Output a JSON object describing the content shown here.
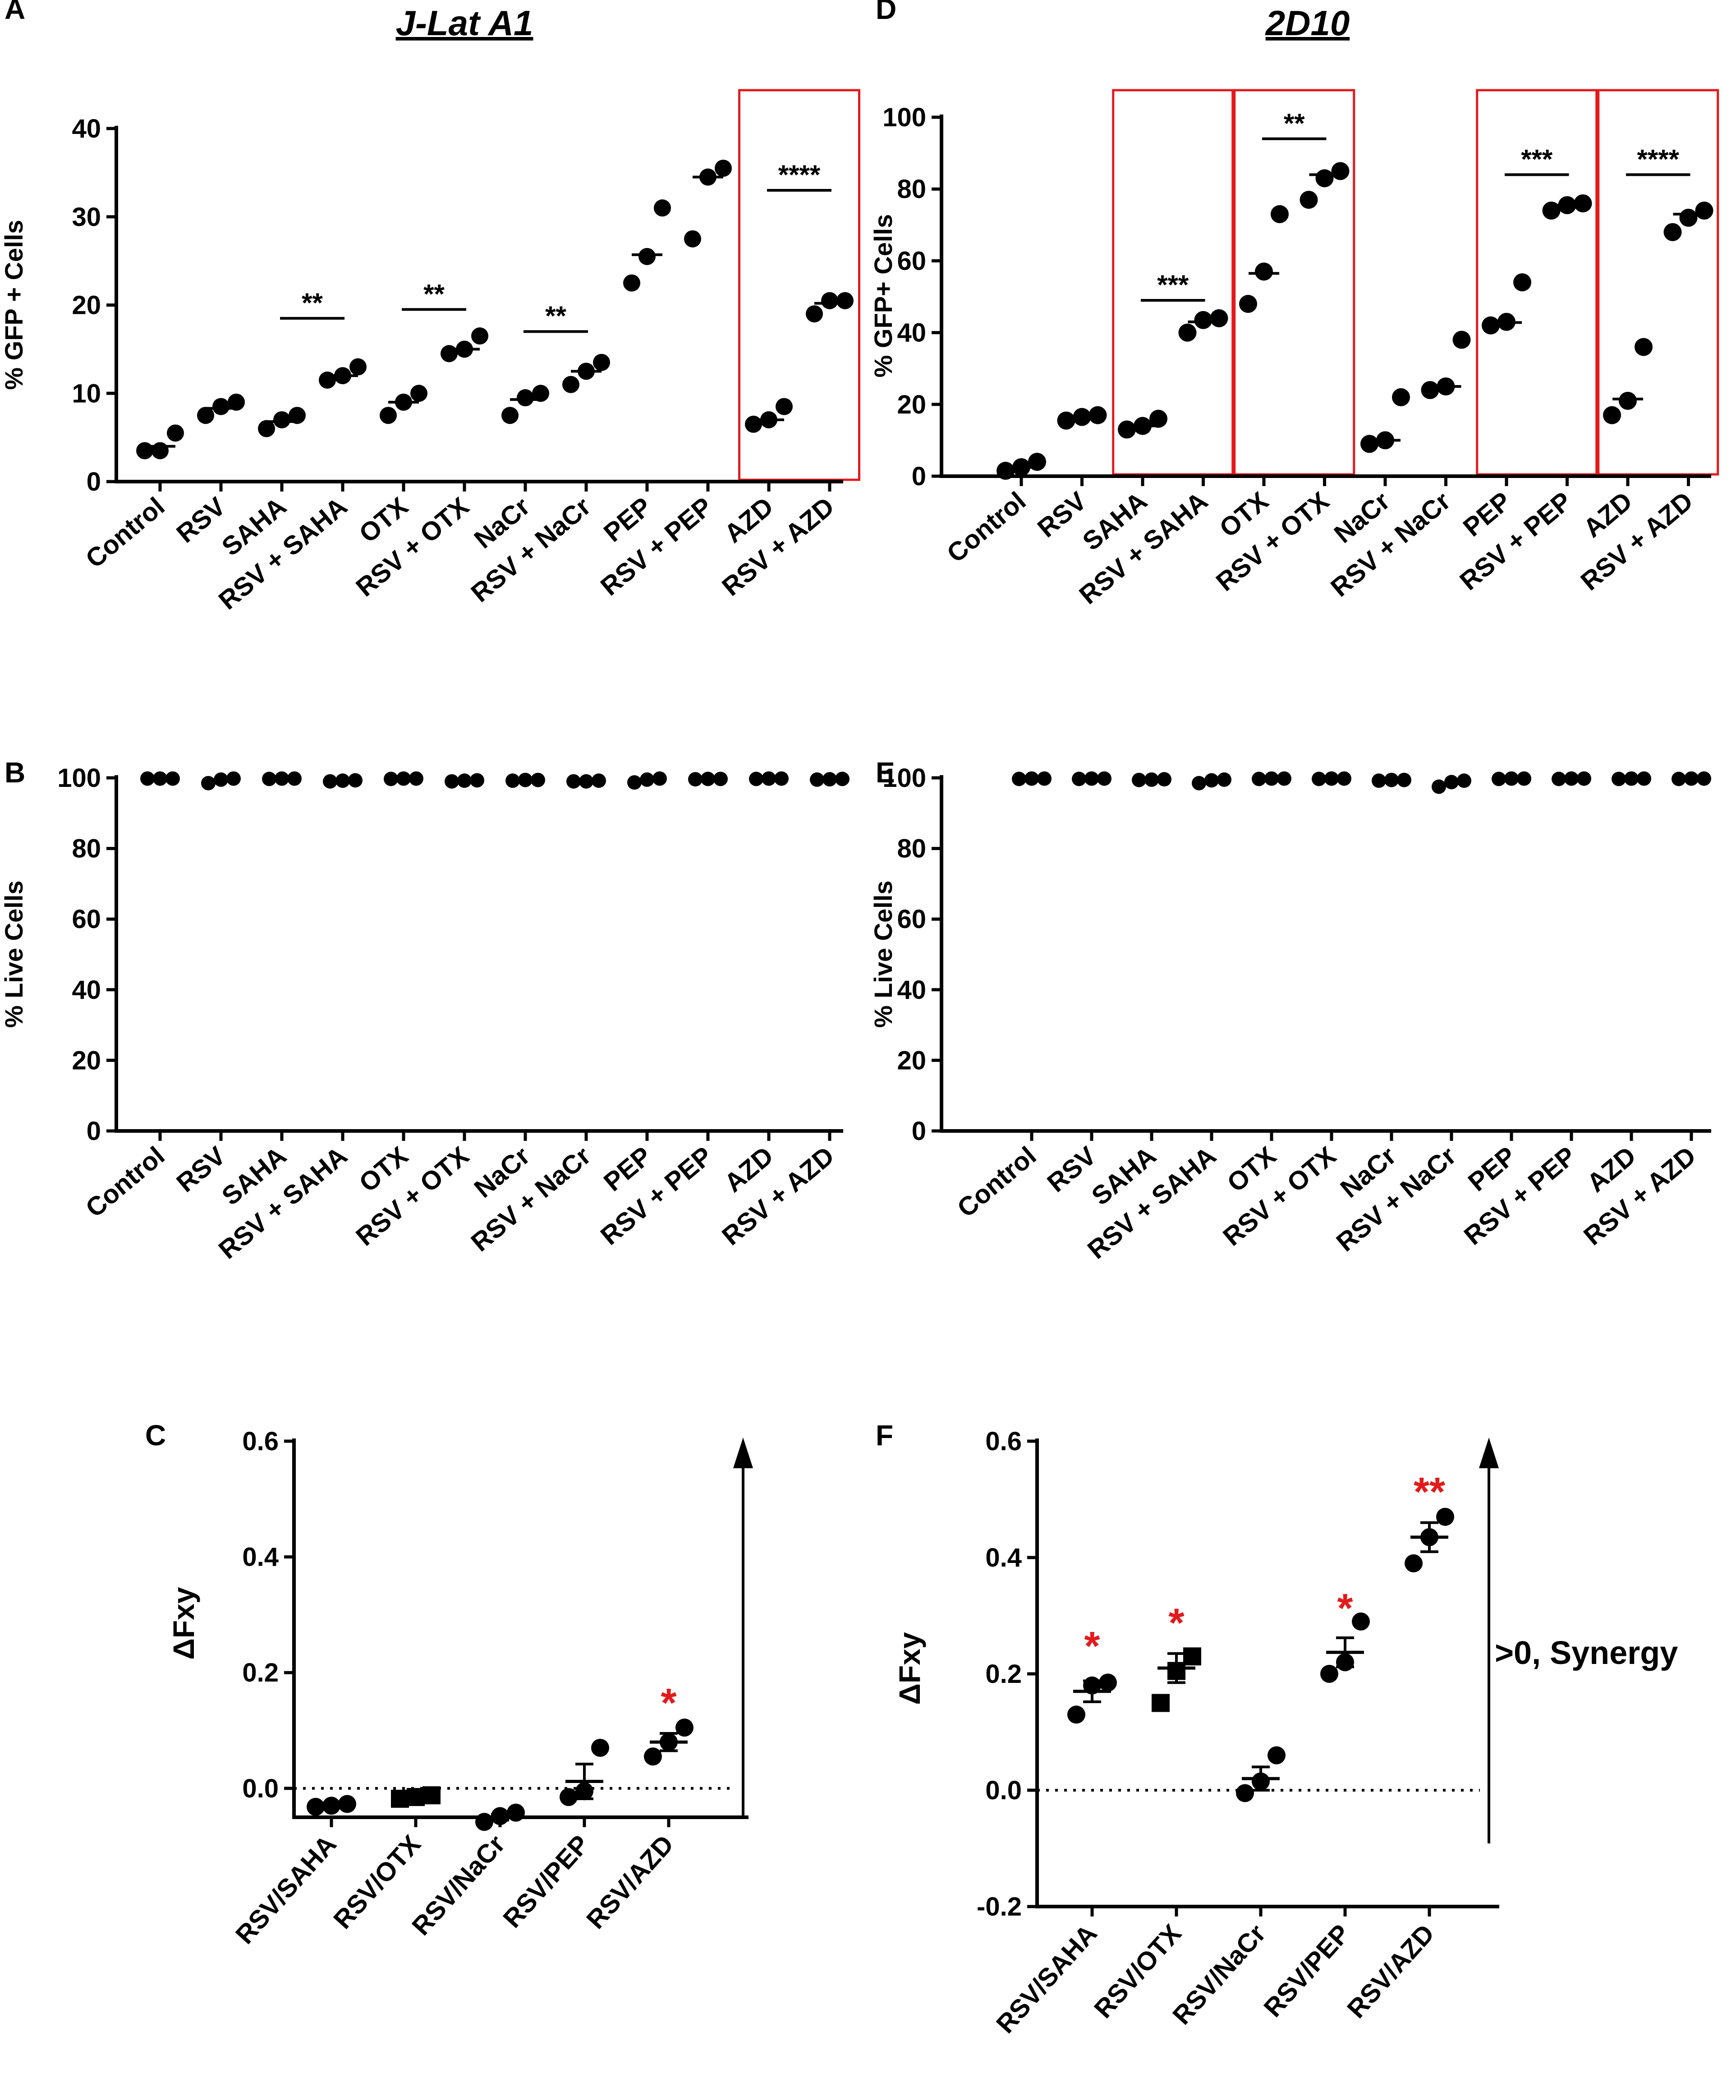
{
  "figure": {
    "title_left": "J-Lat A1",
    "title_right": "2D10",
    "colors": {
      "ink": "#000000",
      "highlight_box": "#e31a1c",
      "significance": "#e31a1c"
    },
    "markers": {
      "circle": "circle",
      "square": "square"
    }
  },
  "chart_data": [
    {
      "panel": "A",
      "type": "scatter",
      "cell_line": "J-Lat A1",
      "ylabel": "% GFP + Cells",
      "ylim": [
        0,
        40
      ],
      "yticks": [
        "0",
        "10",
        "20",
        "30",
        "40"
      ],
      "categories": [
        "Control",
        "RSV",
        "SAHA",
        "RSV + SAHA",
        "OTX",
        "RSV + OTX",
        "NaCr",
        "RSV + NaCr",
        "PEP",
        "RSV + PEP",
        "AZD",
        "RSV + AZD"
      ],
      "points": [
        [
          3.5,
          3.5,
          5.5
        ],
        [
          7.5,
          8.5,
          9
        ],
        [
          6,
          7,
          7.5
        ],
        [
          11.5,
          12,
          13
        ],
        [
          7.5,
          9,
          10
        ],
        [
          14.5,
          15,
          16.5
        ],
        [
          7.5,
          9.5,
          10
        ],
        [
          11,
          12.5,
          13.5
        ],
        [
          22.5,
          25.5,
          31
        ],
        [
          27.5,
          34.5,
          35.5
        ],
        [
          6.5,
          7,
          8.5
        ],
        [
          19,
          20.5,
          20.5
        ]
      ],
      "centers": [
        4,
        8.3,
        6.8,
        12,
        9,
        15,
        9.3,
        12.5,
        25.7,
        34.5,
        7,
        20.2
      ],
      "significance": [
        {
          "from": 2,
          "to": 3,
          "label": "**",
          "y": 18.5
        },
        {
          "from": 4,
          "to": 5,
          "label": "**",
          "y": 19.5
        },
        {
          "from": 6,
          "to": 7,
          "label": "**",
          "y": 17
        },
        {
          "from": 10,
          "to": 11,
          "label": "****",
          "y": 33
        }
      ],
      "highlight_pairs": [
        [
          10,
          11
        ]
      ]
    },
    {
      "panel": "B",
      "type": "scatter",
      "cell_line": "J-Lat A1",
      "ylabel": "% Live Cells",
      "ylim": [
        0,
        100
      ],
      "yticks": [
        "0",
        "20",
        "40",
        "60",
        "80",
        "100"
      ],
      "categories": [
        "Control",
        "RSV",
        "SAHA",
        "RSV + SAHA",
        "OTX",
        "RSV + OTX",
        "NaCr",
        "RSV + NaCr",
        "PEP",
        "RSV + PEP",
        "AZD",
        "RSV + AZD"
      ],
      "points": [
        [
          99.8,
          99.8,
          99.8
        ],
        [
          98.5,
          99.5,
          99.8
        ],
        [
          99.7,
          99.8,
          99.8
        ],
        [
          99,
          99.2,
          99.3
        ],
        [
          99.7,
          99.8,
          99.8
        ],
        [
          99,
          99.2,
          99.3
        ],
        [
          99.2,
          99.4,
          99.4
        ],
        [
          99,
          99,
          99.2
        ],
        [
          98.7,
          99.5,
          99.8
        ],
        [
          99.6,
          99.7,
          99.7
        ],
        [
          99.7,
          99.8,
          99.8
        ],
        [
          99.5,
          99.6,
          99.7
        ]
      ]
    },
    {
      "panel": "C",
      "type": "scatter",
      "cell_line": "J-Lat A1",
      "ylabel": "ΔFxy",
      "ylim": [
        -0.05,
        0.6
      ],
      "yticks": [
        "0.0",
        "0.2",
        "0.4",
        "0.6"
      ],
      "categories": [
        "RSV/SAHA",
        "RSV/OTX",
        "RSV/NaCr",
        "RSV/PEP",
        "RSV/AZD"
      ],
      "points": [
        [
          -0.032,
          -0.03,
          -0.027
        ],
        [
          -0.018,
          -0.015,
          -0.012
        ],
        [
          -0.058,
          -0.048,
          -0.042
        ],
        [
          -0.015,
          -0.005,
          0.07
        ],
        [
          0.055,
          0.08,
          0.105
        ]
      ],
      "markers": [
        "circle",
        "square",
        "circle",
        "circle",
        "circle"
      ],
      "means": [
        -0.03,
        -0.015,
        -0.05,
        0.012,
        0.08
      ],
      "sems": [
        0.002,
        0.002,
        0.005,
        0.03,
        0.015
      ],
      "significance_marks": [
        {
          "index": 4,
          "label": "*",
          "y": 0.155
        }
      ],
      "reference_line": 0,
      "synergy_arrow": true
    },
    {
      "panel": "D",
      "type": "scatter",
      "cell_line": "2D10",
      "ylabel": "% GFP+ Cells",
      "ylim": [
        0,
        100
      ],
      "yticks": [
        "0",
        "20",
        "40",
        "60",
        "80",
        "100"
      ],
      "categories": [
        "Control",
        "RSV",
        "SAHA",
        "RSV + SAHA",
        "OTX",
        "RSV + OTX",
        "NaCr",
        "RSV + NaCr",
        "PEP",
        "RSV + PEP",
        "AZD",
        "RSV + AZD"
      ],
      "points": [
        [
          1.5,
          2.5,
          4
        ],
        [
          15.5,
          16.5,
          17
        ],
        [
          13,
          14,
          16
        ],
        [
          40,
          43.5,
          44
        ],
        [
          48,
          57,
          73
        ],
        [
          77,
          83,
          85
        ],
        [
          9,
          10,
          22
        ],
        [
          24,
          25,
          38
        ],
        [
          42,
          43,
          54
        ],
        [
          74,
          75.5,
          76
        ],
        [
          17,
          21,
          36
        ],
        [
          68,
          72,
          74
        ]
      ],
      "centers": [
        2.5,
        16.5,
        14,
        43,
        56.5,
        84,
        10,
        25,
        42.8,
        75.5,
        21.5,
        73
      ],
      "significance": [
        {
          "from": 2,
          "to": 3,
          "label": "***",
          "y": 49
        },
        {
          "from": 4,
          "to": 5,
          "label": "**",
          "y": 94
        },
        {
          "from": 8,
          "to": 9,
          "label": "***",
          "y": 84
        },
        {
          "from": 10,
          "to": 11,
          "label": "****",
          "y": 84
        }
      ],
      "highlight_pairs": [
        [
          2,
          3
        ],
        [
          4,
          5
        ],
        [
          8,
          9
        ],
        [
          10,
          11
        ]
      ]
    },
    {
      "panel": "E",
      "type": "scatter",
      "cell_line": "2D10",
      "ylabel": "% Live Cells",
      "ylim": [
        0,
        100
      ],
      "yticks": [
        "0",
        "20",
        "40",
        "60",
        "80",
        "100"
      ],
      "categories": [
        "Control",
        "RSV",
        "SAHA",
        "RSV + SAHA",
        "OTX",
        "RSV + OTX",
        "NaCr",
        "RSV + NaCr",
        "PEP",
        "RSV + PEP",
        "AZD",
        "RSV + AZD"
      ],
      "points": [
        [
          99.7,
          99.8,
          99.8
        ],
        [
          99.7,
          99.8,
          99.8
        ],
        [
          99.4,
          99.5,
          99.6
        ],
        [
          98.5,
          99.3,
          99.5
        ],
        [
          99.7,
          99.8,
          99.8
        ],
        [
          99.7,
          99.8,
          99.8
        ],
        [
          99.2,
          99.4,
          99.4
        ],
        [
          97.5,
          98.8,
          99.2
        ],
        [
          99.7,
          99.8,
          99.8
        ],
        [
          99.7,
          99.8,
          99.8
        ],
        [
          99.7,
          99.8,
          99.8
        ],
        [
          99.7,
          99.8,
          99.8
        ]
      ]
    },
    {
      "panel": "F",
      "type": "scatter",
      "cell_line": "2D10",
      "ylabel": "ΔFxy",
      "ylim": [
        -0.2,
        0.6
      ],
      "yticks": [
        "-0.2",
        "0.0",
        "0.2",
        "0.4",
        "0.6"
      ],
      "categories": [
        "RSV/SAHA",
        "RSV/OTX",
        "RSV/NaCr",
        "RSV/PEP",
        "RSV/AZD"
      ],
      "points": [
        [
          0.13,
          0.18,
          0.185
        ],
        [
          0.15,
          0.205,
          0.23
        ],
        [
          -0.005,
          0.015,
          0.06
        ],
        [
          0.2,
          0.22,
          0.29
        ],
        [
          0.39,
          0.435,
          0.47
        ]
      ],
      "markers": [
        "circle",
        "square",
        "circle",
        "circle",
        "circle"
      ],
      "means": [
        0.17,
        0.21,
        0.02,
        0.237,
        0.435
      ],
      "sems": [
        0.018,
        0.025,
        0.02,
        0.025,
        0.025
      ],
      "significance_marks": [
        {
          "index": 0,
          "label": "*",
          "y": 0.255
        },
        {
          "index": 1,
          "label": "*",
          "y": 0.295
        },
        {
          "index": 3,
          "label": "*",
          "y": 0.32
        },
        {
          "index": 4,
          "label": "**",
          "y": 0.52
        }
      ],
      "reference_line": 0,
      "synergy_arrow": true,
      "annotation": ">0, Synergy"
    }
  ]
}
